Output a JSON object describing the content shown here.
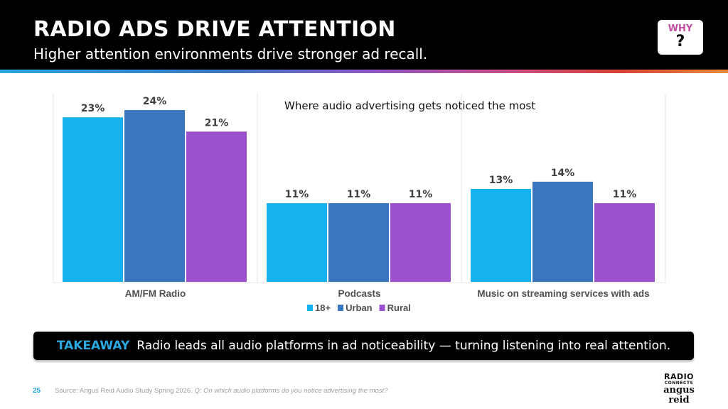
{
  "header": {
    "title": "RADIO ADS DRIVE ATTENTION",
    "subtitle": "Higher attention environments drive stronger ad recall.",
    "why_button": {
      "label": "WHY",
      "icon": "question-mark-icon",
      "glyph": "?"
    }
  },
  "colors": {
    "series_18plus": "#16b2ef",
    "series_urban": "#3a75c0",
    "series_rural": "#9b50cc",
    "takeaway_accent": "#2aa8df",
    "why_accent": "#c44fa2"
  },
  "chart_data": {
    "type": "bar",
    "title": "Where audio advertising gets noticed the most",
    "categories": [
      "AM/FM Radio",
      "Podcasts",
      "Music on streaming services with ads"
    ],
    "series": [
      {
        "name": "18+",
        "values": [
          23,
          11,
          13
        ],
        "labels": [
          "23%",
          "11%",
          "13%"
        ]
      },
      {
        "name": "Urban",
        "values": [
          24,
          11,
          14
        ],
        "labels": [
          "24%",
          "11%",
          "14%"
        ]
      },
      {
        "name": "Rural",
        "values": [
          21,
          11,
          11
        ],
        "labels": [
          "21%",
          "11%",
          "11%"
        ]
      }
    ],
    "xlabel": "",
    "ylabel": "",
    "ylim": [
      0,
      25
    ],
    "unit": "%",
    "grid": false,
    "legend": "bottom-center"
  },
  "takeaway": {
    "label": "TAKEAWAY",
    "text": "Radio leads all audio platforms in ad noticeability — turning listening into real attention."
  },
  "footer": {
    "page_number": "25",
    "source": "Source:  Angus Reid Audio Study Spring 2026. ",
    "question": "Q:  On which audio platforms do you notice advertising the most?"
  },
  "logos": {
    "radio_connects_line1": "RADIO",
    "radio_connects_line2": "CONNECTS",
    "angus_reid": "angus reid"
  }
}
